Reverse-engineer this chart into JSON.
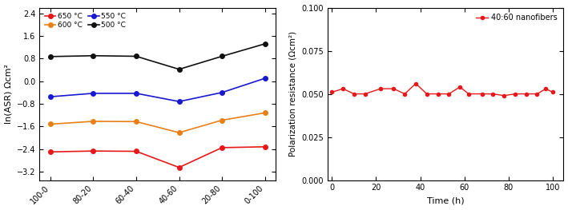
{
  "left": {
    "categories": [
      "100-0",
      "80-20",
      "60-40",
      "40-60",
      "20-80",
      "0-100"
    ],
    "series_order": [
      "650 °C",
      "600 °C",
      "550 °C",
      "500 °C"
    ],
    "series": {
      "650 °C": {
        "color": "#e8181a",
        "values": [
          -2.5,
          -2.47,
          -2.48,
          -3.05,
          -2.35,
          -2.32
        ]
      },
      "600 °C": {
        "color": "#e88018",
        "values": [
          -1.52,
          -1.42,
          -1.43,
          -1.82,
          -1.38,
          -1.12
        ]
      },
      "550 °C": {
        "color": "#1818d0",
        "values": [
          -0.55,
          -0.43,
          -0.43,
          -0.72,
          -0.4,
          0.1
        ]
      },
      "500 °C": {
        "color": "#101010",
        "values": [
          0.87,
          0.9,
          0.88,
          0.42,
          0.88,
          1.32
        ]
      }
    },
    "ylabel": "ln(ASR) Ωcm²",
    "ylim": [
      -3.5,
      2.6
    ],
    "yticks": [
      -3.2,
      -2.4,
      -1.6,
      -0.8,
      0.0,
      0.8,
      1.6,
      2.4
    ],
    "legend_ncol": 2,
    "legend_loc": "upper left"
  },
  "right": {
    "time": [
      0,
      5,
      10,
      15,
      22,
      28,
      33,
      38,
      43,
      48,
      53,
      58,
      62,
      68,
      73,
      78,
      83,
      88,
      93,
      97,
      100
    ],
    "values": [
      0.051,
      0.053,
      0.05,
      0.05,
      0.053,
      0.053,
      0.05,
      0.056,
      0.05,
      0.05,
      0.05,
      0.054,
      0.05,
      0.05,
      0.05,
      0.049,
      0.05,
      0.05,
      0.05,
      0.053,
      0.051
    ],
    "label": "40:60 nanofibers",
    "color": "#e8181a",
    "ylabel": "Polarization resistance (Ωcm²)",
    "xlabel": "Time (h)",
    "ylim": [
      0.0,
      0.1
    ],
    "yticks": [
      0.0,
      0.025,
      0.05,
      0.075,
      0.1
    ],
    "xlim": [
      0,
      105
    ],
    "xticks": [
      0,
      20,
      40,
      60,
      80,
      100
    ]
  },
  "background_color": "#ffffff"
}
